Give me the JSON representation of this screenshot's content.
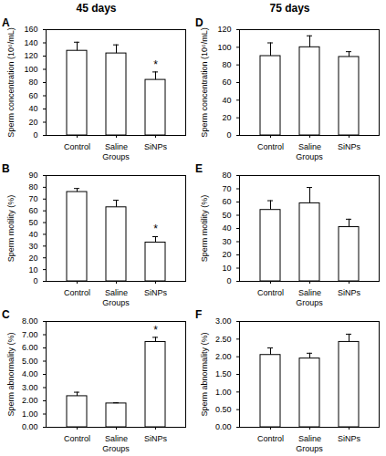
{
  "chart_data": [
    {
      "type": "bar",
      "title": "45 days",
      "panel": "A",
      "categories": [
        "Control",
        "Saline",
        "SiNPs"
      ],
      "values": [
        128,
        124,
        84
      ],
      "errors": [
        13,
        13,
        12
      ],
      "color": "#ffffff",
      "x_label": "Groups",
      "y_label": "Sperm concentration (10⁶/mL)",
      "ylim": [
        0,
        160
      ],
      "yticks": [
        0,
        20,
        40,
        60,
        80,
        100,
        120,
        140,
        160
      ],
      "annotations": [
        {
          "category": "SiNPs",
          "text": "*"
        }
      ]
    },
    {
      "type": "bar",
      "panel": "B",
      "categories": [
        "Control",
        "Saline",
        "SiNPs"
      ],
      "values": [
        76,
        63,
        33
      ],
      "errors": [
        3,
        6,
        5
      ],
      "color": "#ffffff",
      "x_label": "Groups",
      "y_label": "Sperm motility (%)",
      "ylim": [
        0,
        90
      ],
      "yticks": [
        0,
        10,
        20,
        30,
        40,
        50,
        60,
        70,
        80,
        90
      ],
      "annotations": [
        {
          "category": "SiNPs",
          "text": "*"
        }
      ]
    },
    {
      "type": "bar",
      "panel": "C",
      "categories": [
        "Control",
        "Saline",
        "SiNPs"
      ],
      "values": [
        2.35,
        1.8,
        6.45
      ],
      "errors": [
        0.3,
        0.05,
        0.35
      ],
      "color": "#ffffff",
      "x_label": "Groups",
      "y_label": "Sperm abnormality (%)",
      "ylim": [
        0,
        8
      ],
      "yticks": [
        {
          "value": 0,
          "label": "0.00"
        },
        {
          "value": 1,
          "label": "1.00"
        },
        {
          "value": 2,
          "label": "2.00"
        },
        {
          "value": 3,
          "label": "3.00"
        },
        {
          "value": 4,
          "label": "4.00"
        },
        {
          "value": 5,
          "label": "5.00"
        },
        {
          "value": 6,
          "label": "6.00"
        },
        {
          "value": 7,
          "label": "7.00"
        },
        {
          "value": 8,
          "label": "8.00"
        }
      ],
      "annotations": [
        {
          "category": "SiNPs",
          "text": "*"
        }
      ]
    },
    {
      "type": "bar",
      "title": "75 days",
      "panel": "D",
      "categories": [
        "Control",
        "Saline",
        "SiNPs"
      ],
      "values": [
        90,
        100,
        89
      ],
      "errors": [
        15,
        13,
        6
      ],
      "color": "#ffffff",
      "x_label": "Groups",
      "y_label": "Sperm concentration (10⁶/mL)",
      "ylim": [
        0,
        120
      ],
      "yticks": [
        0,
        20,
        40,
        60,
        80,
        100,
        120
      ]
    },
    {
      "type": "bar",
      "panel": "E",
      "categories": [
        "Control",
        "Saline",
        "SiNPs"
      ],
      "values": [
        54,
        59,
        41
      ],
      "errors": [
        7,
        12,
        6
      ],
      "color": "#ffffff",
      "x_label": "Groups",
      "y_label": "Sperm motility (%)",
      "ylim": [
        0,
        80
      ],
      "yticks": [
        0,
        10,
        20,
        30,
        40,
        50,
        60,
        70,
        80
      ]
    },
    {
      "type": "bar",
      "panel": "F",
      "categories": [
        "Control",
        "Saline",
        "SiNPs"
      ],
      "values": [
        2.05,
        1.95,
        2.42
      ],
      "errors": [
        0.2,
        0.15,
        0.22
      ],
      "color": "#ffffff",
      "x_label": "Groups",
      "y_label": "Sperm abnormality (%)",
      "ylim": [
        0,
        3
      ],
      "yticks": [
        {
          "value": 0,
          "label": "0.00"
        },
        {
          "value": 0.5,
          "label": "0.50"
        },
        {
          "value": 1,
          "label": "1.00"
        },
        {
          "value": 1.5,
          "label": "1.50"
        },
        {
          "value": 2,
          "label": "2.00"
        },
        {
          "value": 2.5,
          "label": "2.50"
        },
        {
          "value": 3,
          "label": "3.00"
        }
      ]
    }
  ]
}
